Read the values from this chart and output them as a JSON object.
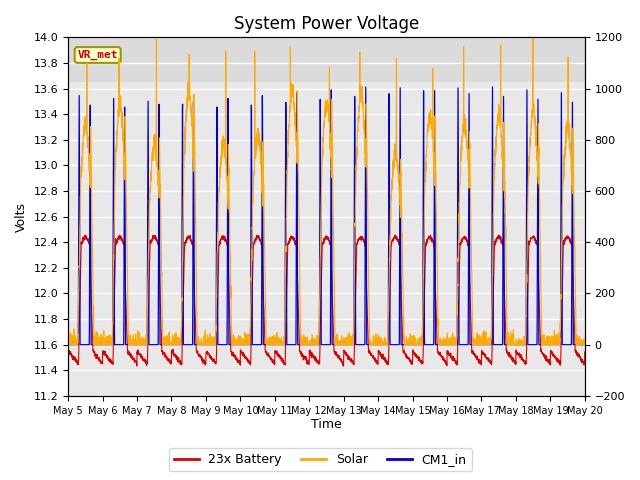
{
  "title": "System Power Voltage",
  "xlabel": "Time",
  "ylabel": "Volts",
  "ylim_left": [
    11.2,
    14.0
  ],
  "ylim_right": [
    -200,
    1200
  ],
  "yticks_left": [
    11.2,
    11.4,
    11.6,
    11.8,
    12.0,
    12.2,
    12.4,
    12.6,
    12.8,
    13.0,
    13.2,
    13.4,
    13.6,
    13.8,
    14.0
  ],
  "yticks_right": [
    -200,
    0,
    200,
    400,
    600,
    800,
    1000,
    1200
  ],
  "xtick_labels": [
    "May 5",
    "May 6",
    "May 7",
    "May 8",
    "May 9",
    "May 10",
    "May 11",
    "May 12",
    "May 13",
    "May 14",
    "May 15",
    "May 16",
    "May 17",
    "May 18",
    "May 19",
    "May 20"
  ],
  "legend_labels": [
    "23x Battery",
    "Solar",
    "CM1_in"
  ],
  "legend_colors": [
    "#dd0000",
    "#ffaa00",
    "#0000dd"
  ],
  "line_colors": {
    "battery": "#dd0000",
    "solar": "#ffaa00",
    "cm1": "#0000dd"
  },
  "annotation_text": "VR_met",
  "annotation_color": "#cc0000",
  "annotation_bg": "#ffffcc",
  "annotation_border": "#999900",
  "plot_bg_color": "#e8e8e8",
  "title_fontsize": 12,
  "axis_fontsize": 9,
  "tick_fontsize": 8,
  "legend_fontsize": 9
}
